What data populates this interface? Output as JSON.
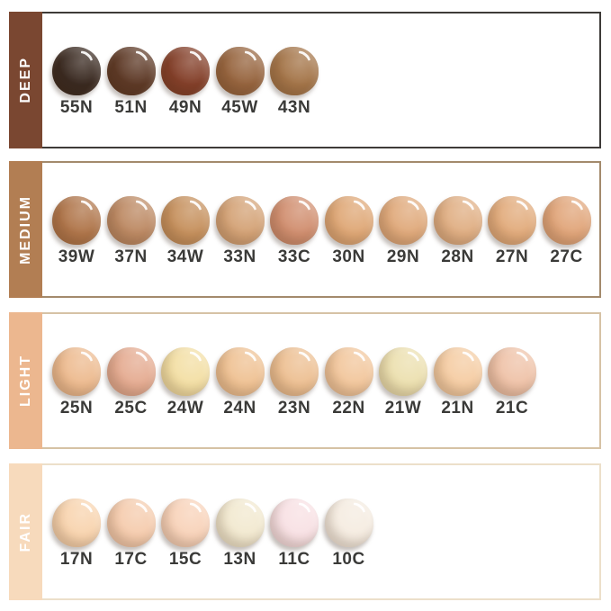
{
  "page": {
    "background": "#ffffff",
    "label_text_color": "#3a3a38"
  },
  "rows": [
    {
      "id": "deep",
      "label": "DEEP",
      "sidebar_color": "#7a4731",
      "border_color": "#3e3b38",
      "swatches": [
        {
          "code": "55N",
          "color": "#3a2a21"
        },
        {
          "code": "51N",
          "color": "#5e3a27"
        },
        {
          "code": "49N",
          "color": "#84402a"
        },
        {
          "code": "45W",
          "color": "#97653f"
        },
        {
          "code": "43N",
          "color": "#a5764a"
        }
      ]
    },
    {
      "id": "medium",
      "label": "MEDIUM",
      "sidebar_color": "#b27e53",
      "border_color": "#a38a6c",
      "swatches": [
        {
          "code": "39W",
          "color": "#b0764b"
        },
        {
          "code": "37N",
          "color": "#bd8a64"
        },
        {
          "code": "34W",
          "color": "#c6915e"
        },
        {
          "code": "33N",
          "color": "#d4a377"
        },
        {
          "code": "33C",
          "color": "#d18f70"
        },
        {
          "code": "30N",
          "color": "#dfa877"
        },
        {
          "code": "29N",
          "color": "#e0aa7c"
        },
        {
          "code": "28N",
          "color": "#e0af84"
        },
        {
          "code": "27N",
          "color": "#e2ac7d"
        },
        {
          "code": "27C",
          "color": "#e1a67b"
        }
      ]
    },
    {
      "id": "light",
      "label": "LIGHT",
      "sidebar_color": "#ecb78f",
      "border_color": "#d6c2a5",
      "swatches": [
        {
          "code": "25N",
          "color": "#edbb90"
        },
        {
          "code": "25C",
          "color": "#e5ac92"
        },
        {
          "code": "24W",
          "color": "#f3dfa5"
        },
        {
          "code": "24N",
          "color": "#efc294"
        },
        {
          "code": "23N",
          "color": "#edc093"
        },
        {
          "code": "22N",
          "color": "#f2c79d"
        },
        {
          "code": "21W",
          "color": "#ece0b0"
        },
        {
          "code": "21N",
          "color": "#f5cda4"
        },
        {
          "code": "21C",
          "color": "#efc3a9"
        }
      ]
    },
    {
      "id": "fair",
      "label": "FAIR",
      "sidebar_color": "#f7dabc",
      "border_color": "#ecdfca",
      "swatches": [
        {
          "code": "17N",
          "color": "#f8d4af"
        },
        {
          "code": "17C",
          "color": "#f5ccae"
        },
        {
          "code": "15C",
          "color": "#f8d3ba"
        },
        {
          "code": "13N",
          "color": "#f2e9d0"
        },
        {
          "code": "11C",
          "color": "#f8e1e4"
        },
        {
          "code": "10C",
          "color": "#f5ece1"
        }
      ]
    }
  ]
}
